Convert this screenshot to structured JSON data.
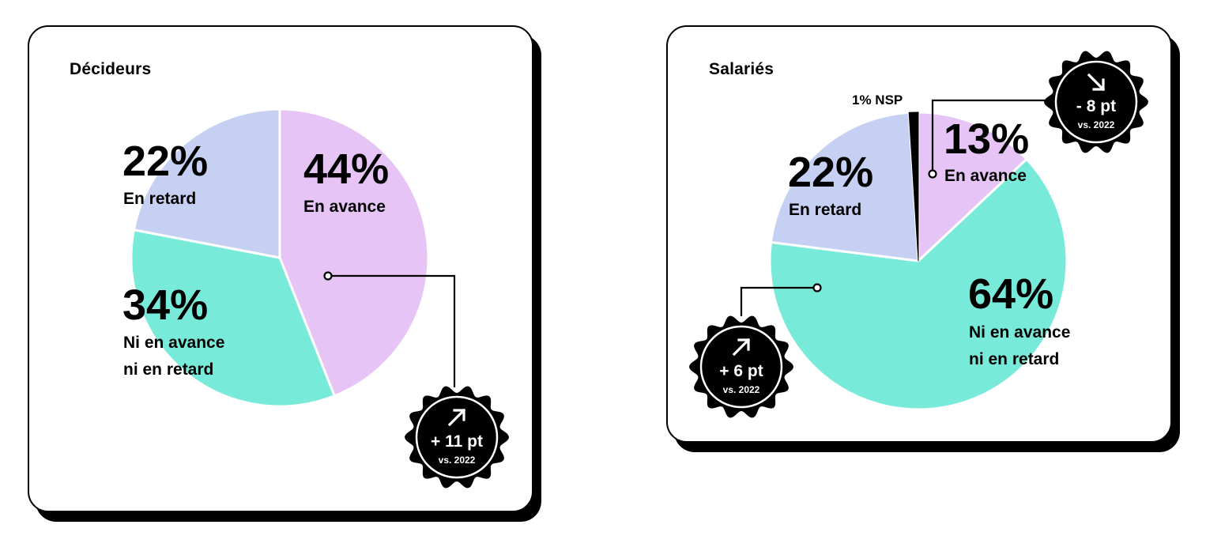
{
  "colors": {
    "en_avance": "#e7c4f6",
    "ni_ni": "#78ead9",
    "en_retard": "#c6d0f3",
    "nsp": "#000000",
    "badge": "#000000"
  },
  "chart_data": [
    {
      "type": "pie",
      "title": "Décideurs",
      "slices": [
        {
          "key": "en_avance",
          "label": "En avance",
          "value": 44,
          "value_label": "44%"
        },
        {
          "key": "ni_ni",
          "label_lines": [
            "Ni en avance",
            "ni en retard"
          ],
          "value": 34,
          "value_label": "34%"
        },
        {
          "key": "en_retard",
          "label": "En retard",
          "value": 22,
          "value_label": "22%"
        }
      ],
      "badge": {
        "arrow": "up-right-arrow-icon",
        "delta": "+ 11 pt",
        "ref": "vs. 2022",
        "slice": "En avance"
      }
    },
    {
      "type": "pie",
      "title": "Salariés",
      "slices": [
        {
          "key": "en_avance",
          "label": "En avance",
          "value": 13,
          "value_label": "13%"
        },
        {
          "key": "ni_ni",
          "label_lines": [
            "Ni en avance",
            "ni en retard"
          ],
          "value": 64,
          "value_label": "64%"
        },
        {
          "key": "en_retard",
          "label": "En retard",
          "value": 22,
          "value_label": "22%"
        },
        {
          "key": "nsp",
          "label": "1% NSP",
          "value": 1,
          "value_label": "1% NSP"
        }
      ],
      "badges": [
        {
          "arrow": "down-right-arrow-icon",
          "delta": "- 8 pt",
          "ref": "vs. 2022",
          "slice": "En avance"
        },
        {
          "arrow": "up-right-arrow-icon",
          "delta": "+ 6 pt",
          "ref": "vs. 2022",
          "slice": "Ni en avance ni en retard"
        }
      ]
    }
  ]
}
